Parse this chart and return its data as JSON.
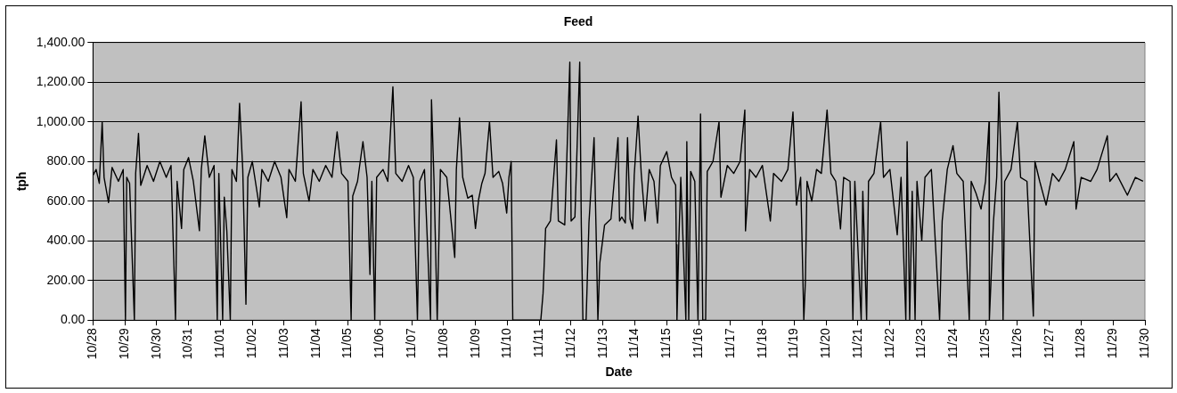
{
  "chart_data": {
    "type": "line",
    "title": "Feed",
    "xlabel": "Date",
    "ylabel": "tph",
    "xlim": [
      "--10-28",
      "--11-30"
    ],
    "xticks": [
      {
        "value": "--10-28",
        "label": "10/28"
      },
      {
        "value": "--10-29",
        "label": "10/29"
      },
      {
        "value": "--10-30",
        "label": "10/30"
      },
      {
        "value": "--10-31",
        "label": "10/31"
      },
      {
        "value": "--11-01",
        "label": "11/01"
      },
      {
        "value": "--11-02",
        "label": "11/02"
      },
      {
        "value": "--11-03",
        "label": "11/03"
      },
      {
        "value": "--11-04",
        "label": "11/04"
      },
      {
        "value": "--11-05",
        "label": "11/05"
      },
      {
        "value": "--11-06",
        "label": "11/06"
      },
      {
        "value": "--11-07",
        "label": "11/07"
      },
      {
        "value": "--11-08",
        "label": "11/08"
      },
      {
        "value": "--11-09",
        "label": "11/09"
      },
      {
        "value": "--11-10",
        "label": "11/10"
      },
      {
        "value": "--11-11",
        "label": "11/11"
      },
      {
        "value": "--11-12",
        "label": "11/12"
      },
      {
        "value": "--11-13",
        "label": "11/13"
      },
      {
        "value": "--11-14",
        "label": "11/14"
      },
      {
        "value": "--11-15",
        "label": "11/15"
      },
      {
        "value": "--11-16",
        "label": "11/16"
      },
      {
        "value": "--11-17",
        "label": "11/17"
      },
      {
        "value": "--11-18",
        "label": "11/18"
      },
      {
        "value": "--11-19",
        "label": "11/19"
      },
      {
        "value": "--11-20",
        "label": "11/20"
      },
      {
        "value": "--11-21",
        "label": "11/21"
      },
      {
        "value": "--11-22",
        "label": "11/22"
      },
      {
        "value": "--11-23",
        "label": "11/23"
      },
      {
        "value": "--11-24",
        "label": "11/24"
      },
      {
        "value": "--11-25",
        "label": "11/25"
      },
      {
        "value": "--11-26",
        "label": "11/26"
      },
      {
        "value": "--11-27",
        "label": "11/27"
      },
      {
        "value": "--11-28",
        "label": "11/28"
      },
      {
        "value": "--11-29",
        "label": "11/29"
      },
      {
        "value": "--11-30",
        "label": "11/30"
      }
    ],
    "ylim": [
      0,
      1400
    ],
    "yticks": [
      {
        "value": 0,
        "label": "0.00"
      },
      {
        "value": 200,
        "label": "200.00"
      },
      {
        "value": 400,
        "label": "400.00"
      },
      {
        "value": 600,
        "label": "600.00"
      },
      {
        "value": 800,
        "label": "800.00"
      },
      {
        "value": 1000,
        "label": "1,000.00"
      },
      {
        "value": 1200,
        "label": "1,200.00"
      },
      {
        "value": 1400,
        "label": "1,400.00"
      }
    ],
    "grid": "y",
    "legend": false,
    "marker": "none",
    "line_style": "solid",
    "series": [
      {
        "color": "#000000",
        "x": [
          "--10-28T00:00",
          "--10-28T02:24",
          "--10-28T04:48",
          "--10-28T06:58",
          "--10-28T08:24",
          "--10-28T11:46",
          "--10-28T14:24",
          "--10-28T19:12",
          "--10-28T22:48",
          "--10-29T00:29",
          "--10-29T01:26",
          "--10-29T03:36",
          "--10-29T07:12",
          "--10-29T08:10",
          "--10-29T10:19",
          "--10-29T12:00",
          "--10-29T16:48",
          "--10-29T21:36",
          "--10-30T02:24",
          "--10-30T07:12",
          "--10-30T10:48",
          "--10-30T14:10",
          "--10-30T15:22",
          "--10-30T18:43",
          "--10-30T20:24",
          "--10-31T00:00",
          "--10-31T03:36",
          "--10-31T08:10",
          "--10-31T09:36",
          "--10-31T12:14",
          "--10-31T15:36",
          "--10-31T19:12",
          "--10-31T21:36",
          "--10-31T22:48",
          "--11-01T01:41",
          "--11-01T02:53",
          "--11-01T04:48",
          "--11-01T07:26",
          "--11-01T08:38",
          "--11-01T12:00",
          "--11-01T14:24",
          "--11-01T16:48",
          "--11-01T19:12",
          "--11-01T20:38",
          "--11-02T00:00",
          "--11-02T05:17",
          "--11-02T07:12",
          "--11-02T12:00",
          "--11-02T16:48",
          "--11-02T21:36",
          "--11-03T01:55",
          "--11-03T03:36",
          "--11-03T08:24",
          "--11-03T12:43",
          "--11-03T14:24",
          "--11-03T18:43",
          "--11-03T21:36",
          "--11-04T02:24",
          "--11-04T07:12",
          "--11-04T12:00",
          "--11-04T15:50",
          "--11-04T19:12",
          "--11-05T00:00",
          "--11-05T02:24",
          "--11-05T03:36",
          "--11-05T07:12",
          "--11-05T11:17",
          "--11-05T14:24",
          "--11-05T16:34",
          "--11-05T18:00",
          "--11-05T20:10",
          "--11-05T21:36",
          "--11-06T02:24",
          "--11-06T06:00",
          "--11-06T09:50",
          "--11-06T12:00",
          "--11-06T16:48",
          "--11-06T21:36",
          "--11-07T01:12",
          "--11-07T04:19",
          "--11-07T06:00",
          "--11-07T09:36",
          "--11-07T14:10",
          "--11-07T14:53",
          "--11-07T16:48",
          "--11-07T19:12",
          "--11-07T21:36",
          "--11-08T02:24",
          "--11-08T08:24",
          "--11-08T09:36",
          "--11-08T12:00",
          "--11-08T14:24",
          "--11-08T18:14",
          "--11-08T21:36",
          "--11-09T00:00",
          "--11-09T02:24",
          "--11-09T04:48",
          "--11-09T07:12",
          "--11-09T10:34",
          "--11-09T13:12",
          "--11-09T17:31",
          "--11-09T20:24",
          "--11-09T23:31",
          "--11-10T01:12",
          "--11-10T02:53",
          "--11-10T04:05",
          "--11-11T01:12",
          "--11-11T02:53",
          "--11-11T04:48",
          "--11-11T08:24",
          "--11-11T12:58",
          "--11-11T14:24",
          "--11-11T19:12",
          "--11-11T23:02",
          "--11-12T00:00",
          "--11-12T02:53",
          "--11-12T06:29",
          "--11-12T07:41",
          "--11-12T08:53",
          "--11-12T11:17",
          "--11-12T13:26",
          "--11-12T17:17",
          "--11-12T18:43",
          "--11-12T20:10",
          "--11-12T21:36",
          "--11-13T01:12",
          "--11-13T06:00",
          "--11-13T11:17",
          "--11-13T12:29",
          "--11-13T14:10",
          "--11-13T16:48",
          "--11-13T18:29",
          "--11-13T20:24",
          "--11-13T22:19",
          "--11-13T23:31",
          "--11-14T02:24",
          "--11-14T04:48",
          "--11-14T07:41",
          "--11-14T10:48",
          "--11-14T14:24",
          "--11-14T17:02",
          "--11-14T19:12",
          "--11-15T00:00",
          "--11-15T03:36",
          "--11-15T06:43",
          "--11-15T07:12",
          "--11-15T07:41",
          "--11-15T09:07",
          "--11-15T10:34",
          "--11-15T14:24",
          "--11-15T15:07",
          "--11-15T16:34",
          "--11-15T18:00",
          "--11-15T21:07",
          "--11-15T23:31",
          "--11-16T01:26",
          "--11-16T03:07",
          "--11-16T05:17",
          "--11-16T06:29",
          "--11-16T10:48",
          "--11-16T15:22",
          "--11-16T16:48",
          "--11-16T21:36",
          "--11-17T02:24",
          "--11-17T07:12",
          "--11-17T10:48",
          "--11-17T11:17",
          "--11-17T14:24",
          "--11-17T19:12",
          "--11-18T00:00",
          "--11-18T06:00",
          "--11-18T08:24",
          "--11-18T14:24",
          "--11-18T19:12",
          "--11-18T23:02",
          "--11-19T01:41",
          "--11-19T04:48",
          "--11-19T07:12",
          "--11-19T08:24",
          "--11-19T09:36",
          "--11-19T13:12",
          "--11-19T16:48",
          "--11-19T20:24",
          "--11-20T00:43",
          "--11-20T03:36",
          "--11-20T07:12",
          "--11-20T10:48",
          "--11-20T13:12",
          "--11-20T18:00",
          "--11-20T20:10",
          "--11-20T21:36",
          "--11-21T02:24",
          "--11-21T03:36",
          "--11-21T06:29",
          "--11-21T07:55",
          "--11-21T12:00",
          "--11-21T17:02",
          "--11-21T19:12",
          "--11-22T00:00",
          "--11-22T05:31",
          "--11-22T08:24",
          "--11-22T12:00",
          "--11-22T12:58",
          "--11-22T14:53",
          "--11-22T16:48",
          "--11-22T18:58",
          "--11-22T20:24",
          "--11-23T00:00",
          "--11-23T02:24",
          "--11-23T07:12",
          "--11-23T13:26",
          "--11-23T15:22",
          "--11-23T19:12",
          "--11-23T23:31",
          "--11-24T02:24",
          "--11-24T07:12",
          "--11-24T11:46",
          "--11-24T13:12",
          "--11-24T16:48",
          "--11-24T20:38",
          "--11-25T00:00",
          "--11-25T02:38",
          "--11-25T02:53",
          "--11-25T06:00",
          "--11-25T08:24",
          "--11-25T10:05",
          "--11-25T12:00",
          "--11-25T13:12",
          "--11-25T14:24",
          "--11-25T19:12",
          "--11-26T00:00",
          "--11-26T02:24",
          "--11-26T07:12",
          "--11-26T12:00",
          "--11-26T13:12",
          "--11-26T16:48",
          "--11-26T21:36",
          "--11-27T02:24",
          "--11-27T07:12",
          "--11-27T12:00",
          "--11-27T18:29",
          "--11-27T20:10",
          "--11-28T00:00",
          "--11-28T07:12",
          "--11-28T12:00",
          "--11-28T19:41",
          "--11-28T21:36",
          "--11-29T02:24",
          "--11-29T10:48",
          "--11-29T16:48",
          "--11-29T22:34"
        ],
        "values": [
          730,
          760,
          690,
          1000,
          720,
          593,
          770,
          700,
          760,
          0,
          720,
          690,
          0,
          740,
          942,
          680,
          780,
          700,
          800,
          720,
          780,
          0,
          700,
          462,
          760,
          820,
          700,
          451,
          760,
          930,
          720,
          780,
          0,
          740,
          0,
          620,
          450,
          0,
          760,
          700,
          1094,
          760,
          80,
          720,
          800,
          571,
          760,
          700,
          800,
          720,
          517,
          760,
          700,
          1101,
          740,
          600,
          760,
          700,
          780,
          720,
          950,
          740,
          700,
          0,
          626,
          700,
          900,
          720,
          230,
          700,
          0,
          720,
          760,
          700,
          1177,
          740,
          700,
          780,
          720,
          0,
          700,
          760,
          0,
          1112,
          700,
          0,
          760,
          720,
          316,
          760,
          1020,
          720,
          615,
          630,
          462,
          610,
          690,
          740,
          1000,
          720,
          750,
          690,
          540,
          720,
          800,
          0,
          0,
          135,
          462,
          500,
          909,
          500,
          480,
          1301,
          500,
          520,
          1301,
          480,
          0,
          0,
          490,
          920,
          480,
          0,
          288,
          480,
          510,
          920,
          500,
          520,
          490,
          920,
          510,
          460,
          730,
          1030,
          740,
          500,
          760,
          700,
          490,
          780,
          850,
          720,
          680,
          380,
          0,
          400,
          720,
          0,
          900,
          0,
          750,
          700,
          0,
          1040,
          0,
          0,
          750,
          800,
          1000,
          620,
          780,
          740,
          800,
          1060,
          450,
          760,
          720,
          780,
          500,
          740,
          700,
          760,
          1050,
          580,
          720,
          0,
          200,
          700,
          600,
          760,
          740,
          1060,
          740,
          700,
          460,
          720,
          700,
          0,
          700,
          0,
          650,
          0,
          700,
          740,
          1000,
          720,
          760,
          430,
          720,
          0,
          900,
          0,
          650,
          0,
          700,
          400,
          720,
          760,
          0,
          500,
          760,
          880,
          740,
          700,
          0,
          700,
          640,
          560,
          700,
          1000,
          0,
          500,
          720,
          1150,
          740,
          0,
          700,
          760,
          1000,
          720,
          700,
          20,
          800,
          700,
          580,
          740,
          700,
          760,
          900,
          560,
          720,
          700,
          760,
          930,
          700,
          740,
          630,
          720,
          700
        ]
      }
    ]
  }
}
